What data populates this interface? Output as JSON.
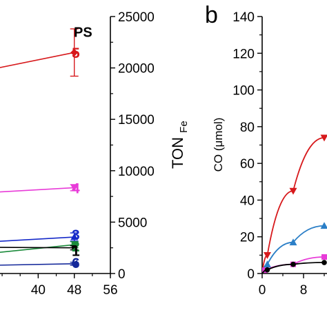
{
  "chart_data": [
    {
      "type": "line",
      "panel_label": "",
      "title": "",
      "xlabel": "",
      "ylabel": "",
      "y2label": "TON",
      "y2label_subscript": "Fe",
      "grid": false,
      "legend": "inline end-of-line labels",
      "xlim": [
        30,
        56
      ],
      "y2lim": [
        0,
        25000
      ],
      "x_ticks": [
        40,
        48,
        56
      ],
      "y2_ticks": [
        0,
        5000,
        10000,
        15000,
        20000,
        25000
      ],
      "series": [
        {
          "name": "5",
          "label": "5",
          "color": "#d7191c",
          "marker": "diamond",
          "x": [
            30,
            48
          ],
          "y": [
            19900,
            21500
          ],
          "yerr": [
            null,
            2300
          ]
        },
        {
          "name": "4",
          "label": "4",
          "color": "#e83bd8",
          "marker": "triangle-down",
          "x": [
            30,
            48
          ],
          "y": [
            7900,
            8350
          ],
          "yerr": [
            null,
            300
          ]
        },
        {
          "name": "3",
          "label": "3",
          "color": "#1428c8",
          "marker": "triangle-up",
          "x": [
            30,
            48
          ],
          "y": [
            3100,
            3550
          ],
          "yerr": [
            null,
            400
          ]
        },
        {
          "name": "2",
          "label": "2",
          "color": "#1a8a3a",
          "marker": "square",
          "x": [
            30,
            48
          ],
          "y": [
            2000,
            2800
          ],
          "yerr": [
            null,
            300
          ]
        },
        {
          "name": "1",
          "label": "1",
          "color": "#000000",
          "marker": "circle",
          "x": [
            30,
            48
          ],
          "y": [
            2550,
            2500
          ],
          "yerr": [
            null,
            200
          ]
        },
        {
          "name": "6",
          "label": "6",
          "color": "#14289a",
          "marker": "triangle-left",
          "x": [
            30,
            48
          ],
          "y": [
            800,
            950
          ],
          "yerr": [
            null,
            150
          ]
        }
      ],
      "annotations": [
        {
          "text": "PS",
          "x": 51,
          "y": 23500
        }
      ]
    },
    {
      "type": "line",
      "panel_label": "b",
      "title": "",
      "xlabel": "",
      "ylabel": "CO (μmol)",
      "grid": false,
      "xlim": [
        0,
        12
      ],
      "ylim": [
        0,
        140
      ],
      "x_ticks": [
        0,
        8
      ],
      "y_ticks": [
        0,
        20,
        40,
        60,
        80,
        100,
        120,
        140
      ],
      "series": [
        {
          "color": "#d7191c",
          "marker": "triangle-down",
          "x": [
            1,
            6,
            12
          ],
          "y": [
            10,
            45,
            74
          ]
        },
        {
          "color": "#2b7fc7",
          "marker": "triangle-up",
          "x": [
            1,
            6,
            12
          ],
          "y": [
            5,
            17,
            26
          ]
        },
        {
          "color": "#e83bd8",
          "marker": "square",
          "x": [
            0.5,
            6,
            12
          ],
          "y": [
            1.8,
            5,
            9
          ]
        },
        {
          "color": "#000000",
          "marker": "circle",
          "x": [
            1,
            6,
            12
          ],
          "y": [
            2,
            5,
            6
          ]
        }
      ]
    }
  ]
}
